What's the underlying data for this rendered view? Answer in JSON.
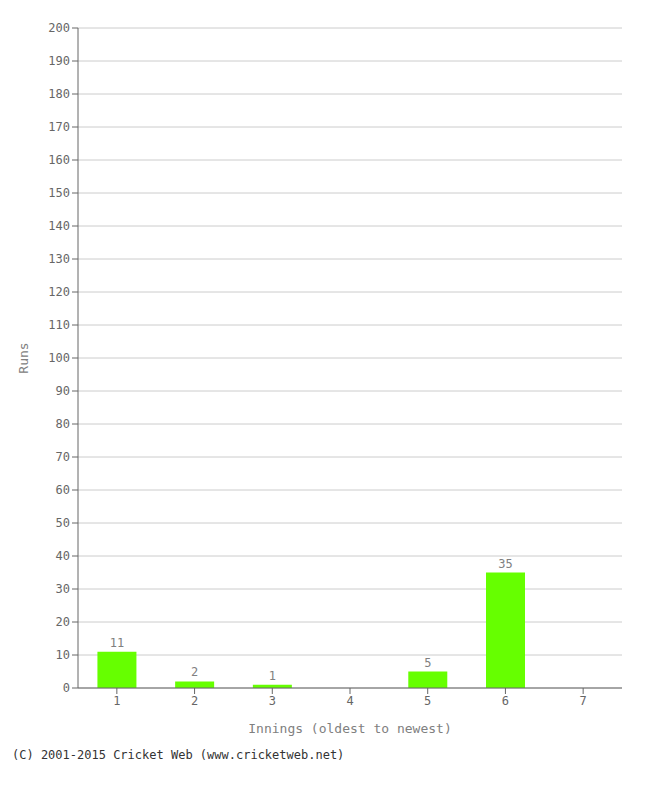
{
  "chart_data": {
    "type": "bar",
    "categories": [
      "1",
      "2",
      "3",
      "4",
      "5",
      "6",
      "7"
    ],
    "values": [
      11,
      2,
      1,
      0,
      5,
      35,
      0
    ],
    "color": "#66ff00",
    "xlabel": "Innings (oldest to newest)",
    "ylabel": "Runs",
    "ylim": [
      0,
      200
    ],
    "yticks": [
      0,
      10,
      20,
      30,
      40,
      50,
      60,
      70,
      80,
      90,
      100,
      110,
      120,
      130,
      140,
      150,
      160,
      170,
      180,
      190,
      200
    ],
    "grid": true,
    "data_labels": true,
    "annotation": "(C) 2001-2015 Cricket Web (www.cricketweb.net)"
  }
}
